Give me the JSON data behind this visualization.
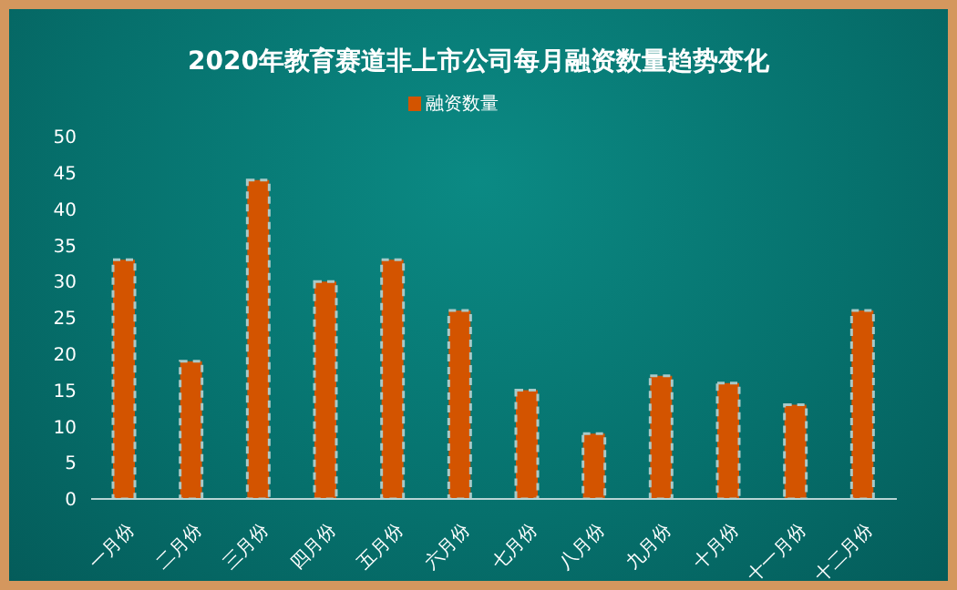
{
  "chart_data": {
    "type": "bar",
    "title": "2020年教育赛道非上市公司每月融资数量趋势变化",
    "categories": [
      "一月份",
      "二月份",
      "三月份",
      "四月份",
      "五月份",
      "六月份",
      "七月份",
      "八月份",
      "九月份",
      "十月份",
      "十一月份",
      "十二月份"
    ],
    "series": [
      {
        "name": "融资数量",
        "color": "#d35400",
        "values": [
          33,
          19,
          44,
          30,
          33,
          26,
          15,
          9,
          17,
          16,
          13,
          26
        ]
      }
    ],
    "ylim": [
      0,
      50
    ],
    "yticks": [
      0,
      5,
      10,
      15,
      20,
      25,
      30,
      35,
      40,
      45,
      50
    ],
    "grid": false,
    "legend": "top"
  }
}
